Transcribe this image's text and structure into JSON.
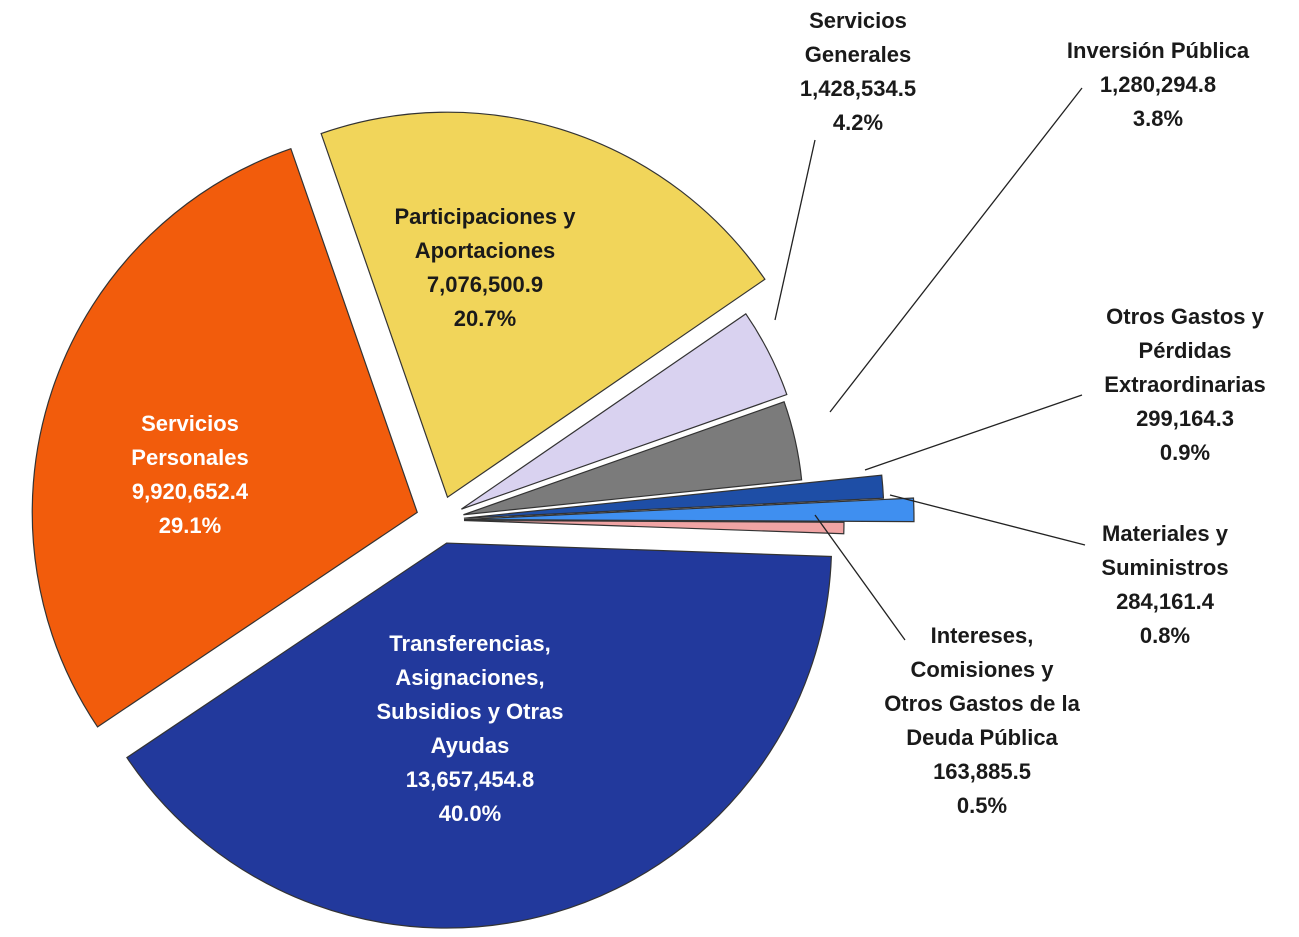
{
  "chart_data": {
    "type": "pie",
    "categories": [
      "Transferencias,\nAsignaciones,\nSubsidios y Otras\nAyudas",
      "Servicios\nPersonales",
      "Participaciones y\nAportaciones",
      "Servicios\nGenerales",
      "Inversión Pública",
      "Otros Gastos y\nPérdidas\nExtraordinarias",
      "Materiales y\nSuministros",
      "Intereses,\nComisiones y\nOtros Gastos de la\nDeuda Pública"
    ],
    "values": [
      13657454.8,
      9920652.4,
      7076500.9,
      1428534.5,
      1280294.8,
      299164.3,
      284161.4,
      163885.5
    ],
    "value_labels": [
      "13,657,454.8",
      "9,920,652.4",
      "7,076,500.9",
      "1,428,534.5",
      "1,280,294.8",
      "299,164.3",
      "284,161.4",
      "163,885.5"
    ],
    "percentages": [
      40.0,
      29.1,
      20.7,
      4.2,
      3.8,
      0.9,
      0.8,
      0.5
    ],
    "percentage_labels": [
      "40.0%",
      "29.1%",
      "20.7%",
      "4.2%",
      "3.8%",
      "0.9%",
      "0.8%",
      "0.5%"
    ],
    "colors": [
      "#22399c",
      "#f25c0c",
      "#f1d55a",
      "#d9d2f0",
      "#7b7b7b",
      "#1e4ea6",
      "#3f8ff0",
      "#f0a4a4"
    ]
  }
}
